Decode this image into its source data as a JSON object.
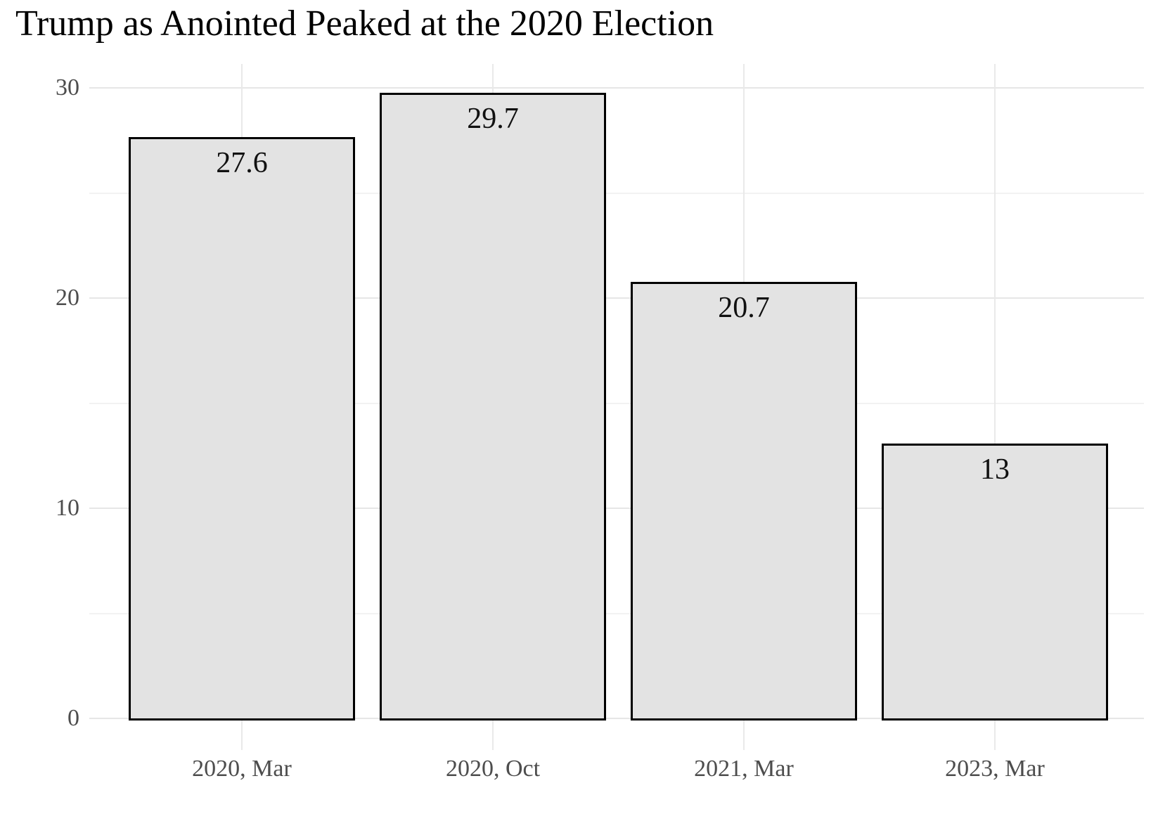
{
  "title": "Trump as Anointed Peaked at the 2020 Election",
  "chart_data": {
    "type": "bar",
    "title": "Trump as Anointed Peaked at the 2020 Election",
    "categories": [
      "2020, Mar",
      "2020, Oct",
      "2021, Mar",
      "2023, Mar"
    ],
    "values": [
      27.6,
      29.7,
      20.7,
      13
    ],
    "value_labels": [
      "27.6",
      "29.7",
      "20.7",
      "13"
    ],
    "xlabel": "",
    "ylabel": "",
    "ylim": [
      0,
      30
    ],
    "y_major_ticks": [
      0,
      10,
      20,
      30
    ],
    "y_major_tick_labels": [
      "0",
      "10",
      "20",
      "30"
    ],
    "y_minor_ticks": [
      5,
      15,
      25
    ],
    "grid": "on",
    "legend": "none",
    "colors": {
      "background": "#ffffff",
      "bar_fill": "#e3e3e3",
      "bar_border": "#000000",
      "grid_major": "#e6e6e6",
      "grid_minor": "#f2f2f2",
      "grid_vertical": "#e9e9e9",
      "axis_text": "#4d4d4d",
      "title_text": "#000000",
      "value_label_text": "#111111"
    }
  }
}
